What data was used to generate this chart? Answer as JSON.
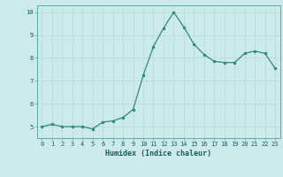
{
  "x": [
    0,
    1,
    2,
    3,
    4,
    5,
    6,
    7,
    8,
    9,
    10,
    11,
    12,
    13,
    14,
    15,
    16,
    17,
    18,
    19,
    20,
    21,
    22,
    23
  ],
  "y": [
    5.0,
    5.1,
    5.0,
    5.0,
    5.0,
    4.9,
    5.2,
    5.25,
    5.4,
    5.75,
    7.25,
    8.5,
    9.3,
    10.0,
    9.35,
    8.6,
    8.15,
    7.85,
    7.8,
    7.8,
    8.2,
    8.3,
    8.2,
    7.55
  ],
  "xlabel": "Humidex (Indice chaleur)",
  "xlim": [
    -0.5,
    23.5
  ],
  "ylim": [
    4.5,
    10.3
  ],
  "yticks": [
    5,
    6,
    7,
    8,
    9,
    10
  ],
  "xticks": [
    0,
    1,
    2,
    3,
    4,
    5,
    6,
    7,
    8,
    9,
    10,
    11,
    12,
    13,
    14,
    15,
    16,
    17,
    18,
    19,
    20,
    21,
    22,
    23
  ],
  "line_color": "#2d8b72",
  "marker_color": "#2d8b72",
  "bg_color": "#cdeaea",
  "grid_color": "#b8d8d8",
  "spine_color": "#5aacac",
  "tick_color": "#1a5c5c",
  "label_color": "#1a5c5c",
  "tick_fontsize": 5.0,
  "xlabel_fontsize": 6.0
}
